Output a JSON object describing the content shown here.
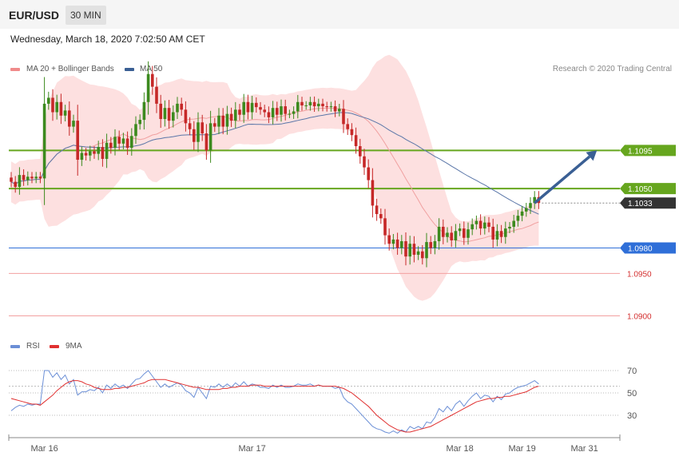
{
  "header": {
    "pair": "EUR/USD",
    "timeframe": "30 MIN",
    "timestamp": "Wednesday, March 18, 2020 7:02:50 AM CET"
  },
  "legend": {
    "ma20": {
      "label": "MA 20 + Bollinger Bands",
      "color": "#f08a8a"
    },
    "ma50": {
      "label": "MA 50",
      "color": "#3a5f94"
    }
  },
  "credit": "Research © 2020 Trading Central",
  "rsi_legend": {
    "rsi": {
      "label": "RSI",
      "color": "#6b8fd6"
    },
    "ma9": {
      "label": "9MA",
      "color": "#e03030"
    }
  },
  "colors": {
    "bull": "#3c8a1e",
    "bear": "#c62828",
    "bands": "#fde0e0",
    "ma20": "#f0a0a0",
    "ma50": "#5a76a8",
    "resistance": "#66a61e",
    "support": "#2f6fd8",
    "support_red": "#f2a0a0",
    "current": "#333333",
    "arrow": "#3a5f94"
  },
  "chart_data": [
    {
      "type": "candlestick",
      "title": "EUR/USD",
      "ylim": [
        1.0877,
        1.118
      ],
      "x_ticks": [
        {
          "label": "Mar 16",
          "index": 8
        },
        {
          "label": "Mar 17",
          "index": 58
        },
        {
          "label": "Mar 18",
          "index": 108
        },
        {
          "label": "Mar 19",
          "index": 123
        },
        {
          "label": "Mar 31",
          "index": 138
        }
      ],
      "levels": [
        {
          "value": 1.1095,
          "label": "1.1095",
          "kind": "resistance"
        },
        {
          "value": 1.105,
          "label": "1.1050",
          "kind": "resistance"
        },
        {
          "value": 1.1033,
          "label": "1.1033",
          "kind": "current"
        },
        {
          "value": 1.098,
          "label": "1.0980",
          "kind": "support"
        },
        {
          "value": 1.095,
          "label": "1.0950",
          "kind": "support_red"
        },
        {
          "value": 1.09,
          "label": "1.0900",
          "kind": "support_red"
        }
      ],
      "forecast_arrow": {
        "from": {
          "index": 126,
          "value": 1.1033
        },
        "to": {
          "index": 141,
          "value": 1.1095
        }
      },
      "closes": [
        1.1058,
        1.1052,
        1.1066,
        1.106,
        1.1064,
        1.1062,
        1.1064,
        1.1062,
        1.115,
        1.1157,
        1.114,
        1.1152,
        1.1136,
        1.1142,
        1.1123,
        1.113,
        1.1084,
        1.1092,
        1.1089,
        1.1094,
        1.1091,
        1.1099,
        1.1085,
        1.1104,
        1.1098,
        1.1111,
        1.1103,
        1.1109,
        1.1098,
        1.1112,
        1.1126,
        1.1131,
        1.1152,
        1.1185,
        1.117,
        1.115,
        1.1132,
        1.1145,
        1.113,
        1.114,
        1.115,
        1.1143,
        1.1127,
        1.112,
        1.1105,
        1.1128,
        1.1115,
        1.1095,
        1.1127,
        1.1123,
        1.1136,
        1.1123,
        1.1138,
        1.113,
        1.1143,
        1.1137,
        1.1152,
        1.114,
        1.1151,
        1.1146,
        1.1143,
        1.114,
        1.1134,
        1.1145,
        1.1137,
        1.1147,
        1.1138,
        1.1138,
        1.1141,
        1.1152,
        1.1148,
        1.1148,
        1.1152,
        1.1147,
        1.115,
        1.1147,
        1.1146,
        1.1147,
        1.1141,
        1.1144,
        1.1126,
        1.112,
        1.1113,
        1.11,
        1.1088,
        1.1075,
        1.106,
        1.103,
        1.102,
        1.1015,
        1.0995,
        1.0985,
        1.099,
        1.098,
        1.0988,
        1.097,
        1.0985,
        1.0972,
        1.0976,
        1.0968,
        1.0987,
        1.098,
        1.0988,
        1.1005,
        1.0993,
        1.0998,
        1.0989,
        1.1,
        1.1003,
        1.0992,
        1.1002,
        1.1008,
        1.1012,
        1.1003,
        1.101,
        1.1005,
        1.099,
        1.1,
        1.0993,
        1.1003,
        1.1005,
        1.1012,
        1.1018,
        1.1023,
        1.1027,
        1.1033,
        1.104,
        1.1033
      ]
    },
    {
      "type": "line",
      "title": "RSI",
      "ylim": [
        10,
        80
      ],
      "y_ticks": [
        70,
        50,
        30
      ],
      "series": [
        {
          "name": "RSI",
          "values": [
            34,
            37,
            39,
            38,
            40,
            39,
            40,
            40,
            70,
            70,
            64,
            68,
            62,
            66,
            58,
            62,
            48,
            51,
            51,
            53,
            52,
            55,
            50,
            57,
            54,
            58,
            55,
            57,
            54,
            58,
            62,
            63,
            67,
            70,
            65,
            60,
            55,
            58,
            55,
            57,
            59,
            57,
            52,
            50,
            46,
            55,
            50,
            45,
            56,
            55,
            58,
            55,
            58,
            55,
            59,
            56,
            60,
            56,
            58,
            57,
            55,
            55,
            54,
            57,
            55,
            57,
            55,
            55,
            56,
            58,
            57,
            57,
            58,
            56,
            57,
            56,
            56,
            56,
            54,
            55,
            46,
            42,
            40,
            36,
            32,
            28,
            24,
            20,
            18,
            17,
            15,
            14,
            16,
            14,
            17,
            15,
            20,
            18,
            20,
            18,
            24,
            23,
            28,
            36,
            33,
            38,
            34,
            40,
            43,
            38,
            43,
            47,
            50,
            45,
            48,
            47,
            42,
            47,
            44,
            49,
            50,
            53,
            55,
            56,
            57,
            59,
            61,
            58
          ]
        },
        {
          "name": "9MA",
          "values": [
            45,
            44,
            43,
            42,
            41,
            40,
            40,
            39,
            42,
            45,
            48,
            52,
            55,
            58,
            60,
            61,
            61,
            60,
            58,
            57,
            55,
            54,
            53,
            53,
            53,
            54,
            54,
            55,
            55,
            56,
            57,
            58,
            59,
            61,
            62,
            62,
            62,
            62,
            61,
            60,
            59,
            58,
            57,
            56,
            55,
            55,
            54,
            53,
            53,
            53,
            53,
            54,
            54,
            55,
            55,
            56,
            56,
            56,
            57,
            57,
            57,
            56,
            56,
            56,
            56,
            56,
            56,
            56,
            56,
            56,
            56,
            56,
            56,
            56,
            57,
            56,
            56,
            56,
            56,
            55,
            54,
            52,
            50,
            47,
            44,
            41,
            38,
            34,
            30,
            27,
            24,
            21,
            19,
            17,
            16,
            15,
            15,
            16,
            17,
            18,
            19,
            20,
            22,
            24,
            26,
            28,
            30,
            32,
            34,
            36,
            38,
            40,
            42,
            43,
            44,
            45,
            45,
            46,
            46,
            47,
            47,
            48,
            49,
            50,
            51,
            53,
            55,
            56
          ]
        }
      ]
    }
  ]
}
